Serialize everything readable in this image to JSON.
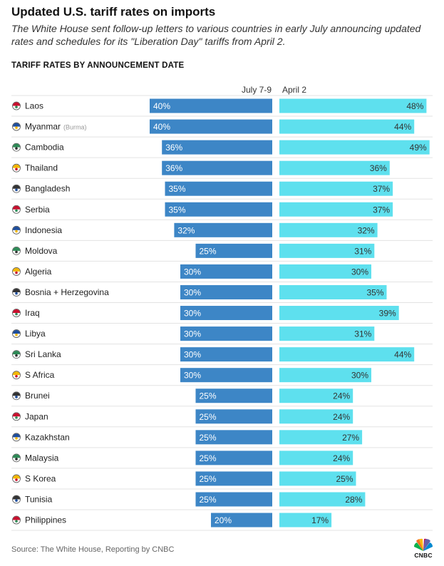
{
  "header": {
    "title": "Updated U.S. tariff rates on imports",
    "subtitle": "The White House sent follow-up letters to various countries in early July announcing updated rates and schedules for its \"Liberation Day\" tariffs from April 2.",
    "section_label": "TARIFF RATES BY ANNOUNCEMENT DATE"
  },
  "footer": {
    "source": "Source: The White House, Reporting by CNBC",
    "logo_text": "CNBC"
  },
  "colors": {
    "july": "#3d86c6",
    "april": "#5ee0ee",
    "grid": "#e3e3e3"
  },
  "chart_data": {
    "type": "bar",
    "orientation": "horizontal",
    "layout": "back-to-back",
    "categories": [
      "Laos",
      "Myanmar",
      "Cambodia",
      "Thailand",
      "Bangladesh",
      "Serbia",
      "Indonesia",
      "Moldova",
      "Algeria",
      "Bosnia + Herzegovina",
      "Iraq",
      "Libya",
      "Sri Lanka",
      "S Africa",
      "Brunei",
      "Japan",
      "Kazakhstan",
      "Malaysia",
      "S Korea",
      "Tunisia",
      "Philippines"
    ],
    "category_notes": [
      "",
      "(Burma)",
      "",
      "",
      "",
      "",
      "",
      "",
      "",
      "",
      "",
      "",
      "",
      "",
      "",
      "",
      "",
      "",
      "",
      "",
      ""
    ],
    "series": [
      {
        "name": "July 7-9",
        "values": [
          40,
          40,
          36,
          36,
          35,
          35,
          32,
          25,
          30,
          30,
          30,
          30,
          30,
          30,
          25,
          25,
          25,
          25,
          25,
          25,
          20
        ]
      },
      {
        "name": "April 2",
        "values": [
          48,
          44,
          49,
          36,
          37,
          37,
          32,
          31,
          30,
          35,
          39,
          31,
          44,
          30,
          24,
          24,
          27,
          24,
          25,
          28,
          17
        ]
      }
    ],
    "value_suffix": "%",
    "xlim": [
      0,
      50
    ],
    "grid": true
  }
}
